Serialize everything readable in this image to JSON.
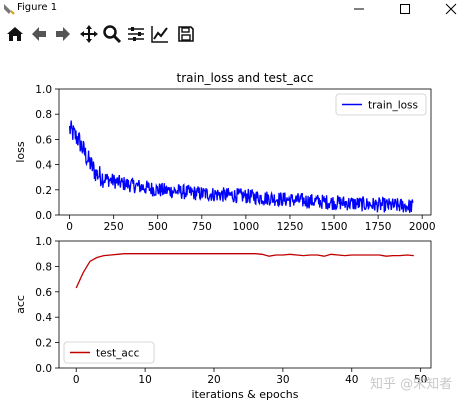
{
  "window": {
    "title": "Figure 1",
    "controls": [
      "minimize",
      "maximize",
      "close"
    ]
  },
  "toolbar": {
    "tools": [
      {
        "icon": "home-icon"
      },
      {
        "icon": "back-arrow-icon"
      },
      {
        "icon": "forward-arrow-icon"
      },
      {
        "icon": "pan-icon"
      },
      {
        "icon": "zoom-icon"
      },
      {
        "icon": "subplots-config-icon"
      },
      {
        "icon": "edit-axes-icon"
      },
      {
        "icon": "save-icon"
      }
    ]
  },
  "watermark": "知乎 @宋知者",
  "chart_data": [
    {
      "type": "line",
      "title": "train_loss and test_acc",
      "xlabel": "",
      "ylabel": "loss",
      "xlim": [
        -60,
        2050
      ],
      "ylim": [
        0.0,
        1.0
      ],
      "xticks": [
        0,
        250,
        500,
        750,
        1000,
        1250,
        1500,
        1750,
        2000
      ],
      "yticks": [
        0.0,
        0.2,
        0.4,
        0.6,
        0.8,
        1.0
      ],
      "xtick_labels": [
        "0",
        "250",
        "500",
        "750",
        "1000",
        "1250",
        "1500",
        "1750",
        "2000"
      ],
      "ytick_labels": [
        "0.0",
        "0.2",
        "0.4",
        "0.6",
        "0.8",
        "1.0"
      ],
      "legend_position": "upper right",
      "series": [
        {
          "name": "train_loss",
          "color": "#0000ff",
          "x_range": [
            0,
            1950
          ],
          "trend_points": [
            [
              0,
              0.68
            ],
            [
              50,
              0.6
            ],
            [
              100,
              0.45
            ],
            [
              150,
              0.33
            ],
            [
              200,
              0.29
            ],
            [
              300,
              0.25
            ],
            [
              500,
              0.2
            ],
            [
              750,
              0.17
            ],
            [
              1000,
              0.15
            ],
            [
              1250,
              0.12
            ],
            [
              1500,
              0.1
            ],
            [
              1750,
              0.08
            ],
            [
              1950,
              0.07
            ]
          ],
          "noise": 0.06
        }
      ]
    },
    {
      "type": "line",
      "title": "",
      "xlabel": "iterations & epochs",
      "ylabel": "acc",
      "xlim": [
        -2.5,
        51.5
      ],
      "ylim": [
        0.0,
        1.0
      ],
      "xticks": [
        0,
        10,
        20,
        30,
        40,
        50
      ],
      "yticks": [
        0.0,
        0.2,
        0.4,
        0.6,
        0.8,
        1.0
      ],
      "xtick_labels": [
        "0",
        "10",
        "20",
        "30",
        "40",
        "50"
      ],
      "ytick_labels": [
        "0.0",
        "0.2",
        "0.4",
        "0.6",
        "0.8",
        "1.0"
      ],
      "legend_position": "lower left",
      "series": [
        {
          "name": "test_acc",
          "color": "#c00000",
          "x": [
            0,
            1,
            2,
            3,
            4,
            5,
            6,
            7,
            8,
            9,
            10,
            11,
            12,
            13,
            14,
            15,
            16,
            17,
            18,
            19,
            20,
            21,
            22,
            23,
            24,
            25,
            26,
            27,
            28,
            29,
            30,
            31,
            32,
            33,
            34,
            35,
            36,
            37,
            38,
            39,
            40,
            41,
            42,
            43,
            44,
            45,
            46,
            47,
            48,
            49
          ],
          "y": [
            0.63,
            0.75,
            0.84,
            0.87,
            0.885,
            0.89,
            0.895,
            0.9,
            0.9,
            0.9,
            0.9,
            0.9,
            0.9,
            0.9,
            0.9,
            0.9,
            0.9,
            0.9,
            0.9,
            0.9,
            0.9,
            0.9,
            0.9,
            0.9,
            0.9,
            0.9,
            0.9,
            0.895,
            0.88,
            0.89,
            0.89,
            0.895,
            0.89,
            0.885,
            0.89,
            0.89,
            0.88,
            0.895,
            0.89,
            0.885,
            0.89,
            0.89,
            0.89,
            0.89,
            0.89,
            0.88,
            0.885,
            0.885,
            0.89,
            0.885
          ]
        }
      ]
    }
  ]
}
